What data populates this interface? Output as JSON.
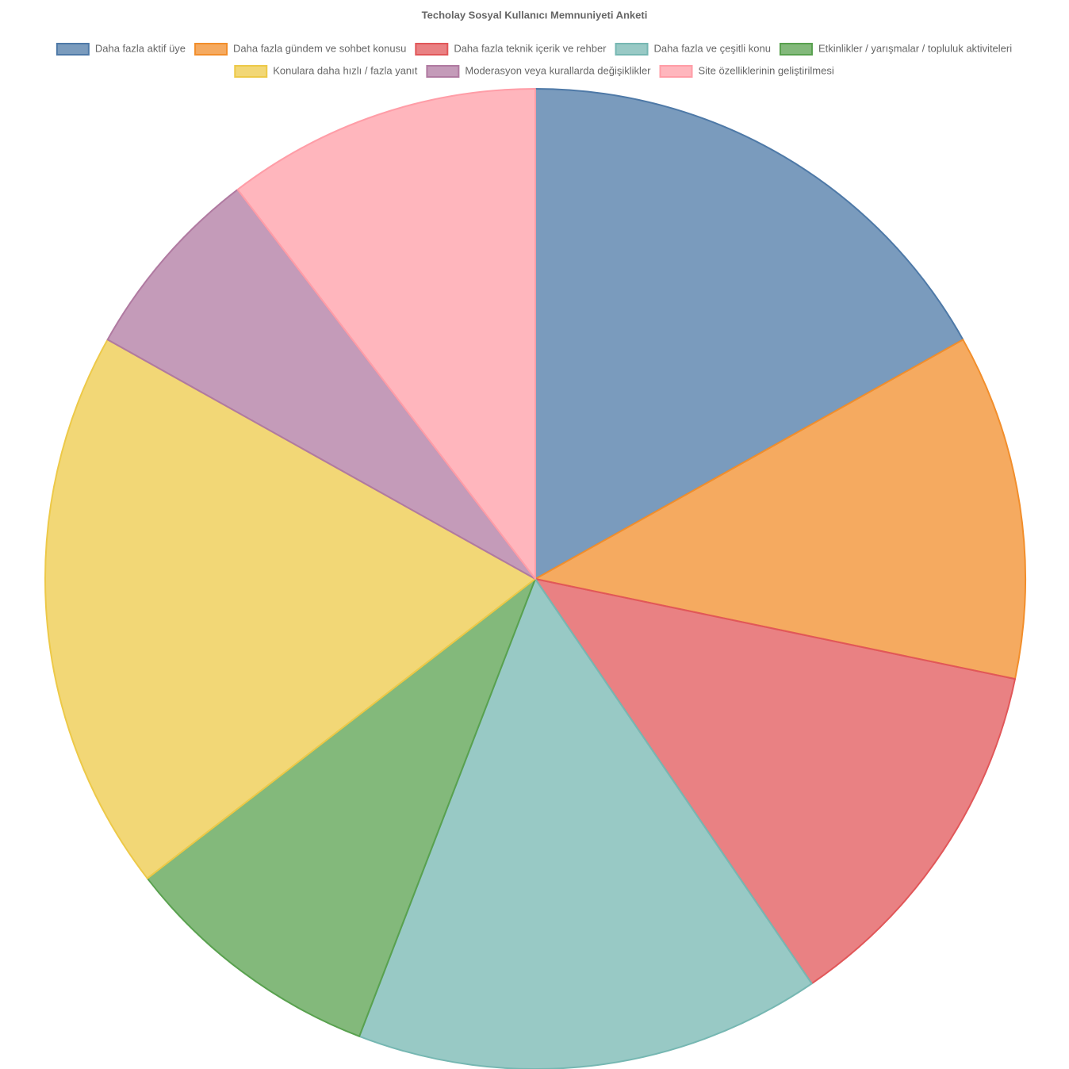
{
  "chart_data": {
    "type": "pie",
    "title": "Techolay Sosyal Kullanıcı Memnuniyeti Anketi",
    "legend": "top",
    "series": [
      {
        "name": "Daha fazla aktif üye",
        "color": "#4e79a7",
        "values": [
          16.9
        ]
      },
      {
        "name": "Daha fazla gündem ve sohbet konusu",
        "color": "#f28e2b",
        "values": [
          11.4
        ]
      },
      {
        "name": "Daha fazla teknik içerik ve rehber",
        "color": "#e15759",
        "values": [
          12.2
        ]
      },
      {
        "name": "Daha fazla ve çeşitli konu",
        "color": "#76b7b2",
        "values": [
          15.4
        ]
      },
      {
        "name": "Etkinlikler / yarışmalar / topluluk aktiviteleri",
        "color": "#59a14f",
        "values": [
          8.7
        ]
      },
      {
        "name": "Konulara daha hızlı / fazla yanıt",
        "color": "#edc948",
        "values": [
          18.6
        ]
      },
      {
        "name": "Moderasyon veya kurallarda değişiklikler",
        "color": "#b07aa1",
        "values": [
          6.5
        ]
      },
      {
        "name": "Site özelliklerinin geliştirilmesi",
        "color": "#ff9da7",
        "values": [
          10.4
        ]
      }
    ]
  }
}
